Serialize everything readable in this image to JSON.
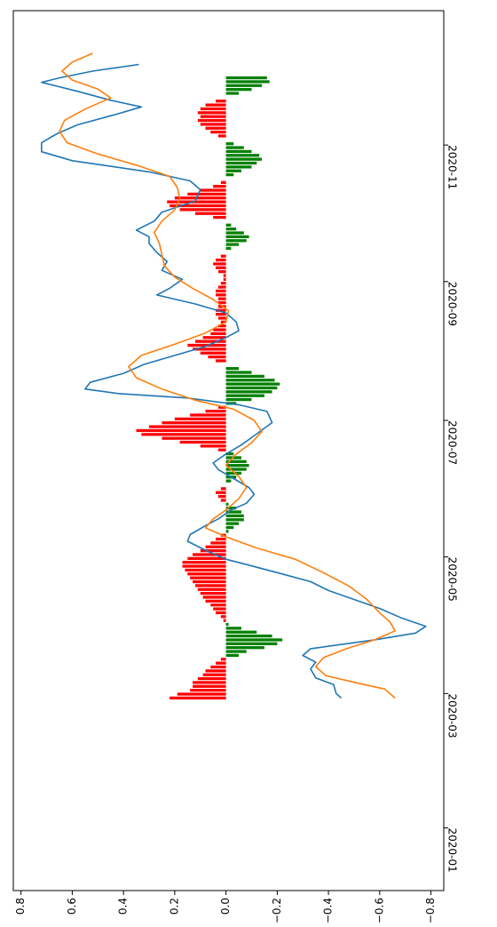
{
  "chart_data": {
    "type": "bar+line",
    "orientation": "rotated-90-clockwise",
    "x_type": "date",
    "x_ticks": [
      "2020-01",
      "2020-03",
      "2020-05",
      "2020-07",
      "2020-09",
      "2020-11"
    ],
    "y_ticks": [
      0.8,
      0.6,
      0.4,
      0.2,
      0.0,
      -0.2,
      -0.4,
      -0.6,
      -0.8
    ],
    "ylim": [
      -0.85,
      0.83
    ],
    "xlim": [
      "2019-12-04",
      "2020-12-31"
    ],
    "grid": false,
    "colors": {
      "line_blue": "#1f77b4",
      "line_orange": "#ff7f0e",
      "bar_positive": "#ff0000",
      "bar_negative": "#008000"
    },
    "bars": {
      "start": "2020-02-28",
      "end": "2020-12-01",
      "values": [
        0.22,
        0.19,
        0.14,
        0.13,
        0.13,
        0.11,
        0.09,
        0.08,
        0.06,
        0.04,
        0.02,
        -0.05,
        -0.08,
        -0.15,
        -0.2,
        -0.22,
        -0.18,
        -0.12,
        -0.06,
        -0.01,
        0.01,
        0.02,
        0.04,
        0.05,
        0.06,
        0.08,
        0.09,
        0.1,
        0.11,
        0.12,
        0.13,
        0.14,
        0.15,
        0.16,
        0.17,
        0.17,
        0.15,
        0.13,
        0.1,
        0.08,
        0.06,
        0.04,
        0.02,
        -0.01,
        -0.03,
        -0.05,
        -0.07,
        -0.07,
        -0.06,
        -0.04,
        -0.01,
        0.02,
        0.03,
        0.04,
        0.02,
        0.0,
        -0.02,
        -0.04,
        -0.06,
        -0.08,
        -0.09,
        -0.08,
        -0.06,
        -0.03,
        0.03,
        0.1,
        0.18,
        0.25,
        0.33,
        0.35,
        0.3,
        0.25,
        0.2,
        0.14,
        0.08,
        0.03,
        -0.04,
        -0.1,
        -0.15,
        -0.18,
        -0.2,
        -0.21,
        -0.19,
        -0.15,
        -0.1,
        -0.05,
        0.0,
        0.04,
        0.07,
        0.1,
        0.13,
        0.15,
        0.12,
        0.09,
        0.06,
        0.05,
        0.03,
        0.02,
        0.03,
        0.04,
        0.04,
        0.03,
        0.03,
        0.03,
        0.04,
        0.04,
        0.03,
        0.02,
        0.01,
        0.01,
        0.03,
        0.04,
        0.05,
        0.04,
        0.02,
        0.0,
        -0.02,
        -0.05,
        -0.08,
        -0.09,
        -0.07,
        -0.04,
        -0.02,
        0.0,
        0.05,
        0.12,
        0.18,
        0.22,
        0.23,
        0.2,
        0.15,
        0.1,
        0.05,
        0.02,
        0.0,
        -0.03,
        -0.06,
        -0.1,
        -0.12,
        -0.14,
        -0.13,
        -0.1,
        -0.07,
        -0.03,
        0.0,
        0.03,
        0.06,
        0.08,
        0.1,
        0.11,
        0.1,
        0.11,
        0.1,
        0.08,
        0.04,
        0.0,
        -0.05,
        -0.1,
        -0.14,
        -0.17,
        -0.16
      ]
    },
    "series": [
      {
        "color": "#1f77b4",
        "points": [
          [
            "2020-02-28",
            -0.45
          ],
          [
            "2020-03-01",
            -0.43
          ],
          [
            "2020-03-05",
            -0.42
          ],
          [
            "2020-03-08",
            -0.35
          ],
          [
            "2020-03-12",
            -0.33
          ],
          [
            "2020-03-15",
            -0.35
          ],
          [
            "2020-03-18",
            -0.3
          ],
          [
            "2020-03-21",
            -0.33
          ],
          [
            "2020-03-25",
            -0.58
          ],
          [
            "2020-03-28",
            -0.74
          ],
          [
            "2020-03-31",
            -0.78
          ],
          [
            "2020-04-04",
            -0.68
          ],
          [
            "2020-04-08",
            -0.6
          ],
          [
            "2020-04-12",
            -0.5
          ],
          [
            "2020-04-16",
            -0.4
          ],
          [
            "2020-04-20",
            -0.33
          ],
          [
            "2020-04-24",
            -0.2
          ],
          [
            "2020-04-27",
            -0.1
          ],
          [
            "2020-04-30",
            0.0
          ],
          [
            "2020-05-04",
            0.08
          ],
          [
            "2020-05-08",
            0.15
          ],
          [
            "2020-05-11",
            0.14
          ],
          [
            "2020-05-15",
            0.08
          ],
          [
            "2020-05-18",
            0.03
          ],
          [
            "2020-05-22",
            -0.02
          ],
          [
            "2020-05-25",
            -0.08
          ],
          [
            "2020-05-29",
            -0.11
          ],
          [
            "2020-06-01",
            -0.09
          ],
          [
            "2020-06-05",
            -0.03
          ],
          [
            "2020-06-09",
            0.03
          ],
          [
            "2020-06-12",
            0.05
          ],
          [
            "2020-06-16",
            0.0
          ],
          [
            "2020-06-20",
            -0.06
          ],
          [
            "2020-06-25",
            -0.12
          ],
          [
            "2020-06-30",
            -0.18
          ],
          [
            "2020-07-05",
            -0.16
          ],
          [
            "2020-07-08",
            -0.05
          ],
          [
            "2020-07-11",
            0.15
          ],
          [
            "2020-07-13",
            0.42
          ],
          [
            "2020-07-15",
            0.55
          ],
          [
            "2020-07-18",
            0.53
          ],
          [
            "2020-07-22",
            0.4
          ],
          [
            "2020-07-26",
            0.32
          ],
          [
            "2020-07-30",
            0.2
          ],
          [
            "2020-08-03",
            0.08
          ],
          [
            "2020-08-07",
            0.0
          ],
          [
            "2020-08-10",
            -0.05
          ],
          [
            "2020-08-14",
            -0.04
          ],
          [
            "2020-08-18",
            0.0
          ],
          [
            "2020-08-22",
            0.12
          ],
          [
            "2020-08-26",
            0.27
          ],
          [
            "2020-08-29",
            0.22
          ],
          [
            "2020-09-02",
            0.17
          ],
          [
            "2020-09-06",
            0.25
          ],
          [
            "2020-09-10",
            0.23
          ],
          [
            "2020-09-14",
            0.27
          ],
          [
            "2020-09-18",
            0.3
          ],
          [
            "2020-09-21",
            0.3
          ],
          [
            "2020-09-24",
            0.35
          ],
          [
            "2020-09-28",
            0.28
          ],
          [
            "2020-10-02",
            0.25
          ],
          [
            "2020-10-07",
            0.12
          ],
          [
            "2020-10-12",
            0.1
          ],
          [
            "2020-10-16",
            0.14
          ],
          [
            "2020-10-20",
            0.3
          ],
          [
            "2020-10-25",
            0.6
          ],
          [
            "2020-10-29",
            0.72
          ],
          [
            "2020-11-02",
            0.72
          ],
          [
            "2020-11-06",
            0.66
          ],
          [
            "2020-11-10",
            0.58
          ],
          [
            "2020-11-15",
            0.42
          ],
          [
            "2020-11-18",
            0.33
          ],
          [
            "2020-11-21",
            0.45
          ],
          [
            "2020-11-25",
            0.58
          ],
          [
            "2020-11-29",
            0.72
          ],
          [
            "2020-12-01",
            0.65
          ],
          [
            "2020-12-04",
            0.52
          ],
          [
            "2020-12-07",
            0.34
          ]
        ]
      },
      {
        "color": "#ff7f0e",
        "points": [
          [
            "2020-02-28",
            -0.66
          ],
          [
            "2020-03-03",
            -0.62
          ],
          [
            "2020-03-06",
            -0.5
          ],
          [
            "2020-03-09",
            -0.39
          ],
          [
            "2020-03-13",
            -0.35
          ],
          [
            "2020-03-17",
            -0.38
          ],
          [
            "2020-03-21",
            -0.47
          ],
          [
            "2020-03-25",
            -0.58
          ],
          [
            "2020-03-29",
            -0.66
          ],
          [
            "2020-04-02",
            -0.64
          ],
          [
            "2020-04-06",
            -0.6
          ],
          [
            "2020-04-12",
            -0.55
          ],
          [
            "2020-04-18",
            -0.48
          ],
          [
            "2020-04-24",
            -0.38
          ],
          [
            "2020-04-30",
            -0.27
          ],
          [
            "2020-05-05",
            -0.12
          ],
          [
            "2020-05-10",
            0.0
          ],
          [
            "2020-05-14",
            0.08
          ],
          [
            "2020-05-18",
            0.05
          ],
          [
            "2020-05-22",
            0.0
          ],
          [
            "2020-05-27",
            -0.05
          ],
          [
            "2020-06-01",
            -0.08
          ],
          [
            "2020-06-06",
            -0.05
          ],
          [
            "2020-06-11",
            0.0
          ],
          [
            "2020-06-16",
            -0.04
          ],
          [
            "2020-06-21",
            -0.1
          ],
          [
            "2020-06-26",
            -0.14
          ],
          [
            "2020-07-01",
            -0.11
          ],
          [
            "2020-07-06",
            -0.03
          ],
          [
            "2020-07-10",
            0.12
          ],
          [
            "2020-07-15",
            0.25
          ],
          [
            "2020-07-20",
            0.35
          ],
          [
            "2020-07-25",
            0.38
          ],
          [
            "2020-07-30",
            0.33
          ],
          [
            "2020-08-04",
            0.2
          ],
          [
            "2020-08-09",
            0.08
          ],
          [
            "2020-08-14",
            0.0
          ],
          [
            "2020-08-19",
            -0.01
          ],
          [
            "2020-08-24",
            0.05
          ],
          [
            "2020-08-29",
            0.13
          ],
          [
            "2020-09-03",
            0.2
          ],
          [
            "2020-09-08",
            0.24
          ],
          [
            "2020-09-13",
            0.25
          ],
          [
            "2020-09-18",
            0.26
          ],
          [
            "2020-09-23",
            0.28
          ],
          [
            "2020-09-28",
            0.25
          ],
          [
            "2020-10-03",
            0.2
          ],
          [
            "2020-10-08",
            0.18
          ],
          [
            "2020-10-13",
            0.19
          ],
          [
            "2020-10-18",
            0.22
          ],
          [
            "2020-10-23",
            0.35
          ],
          [
            "2020-10-28",
            0.5
          ],
          [
            "2020-11-02",
            0.62
          ],
          [
            "2020-11-07",
            0.65
          ],
          [
            "2020-11-12",
            0.63
          ],
          [
            "2020-11-17",
            0.55
          ],
          [
            "2020-11-22",
            0.45
          ],
          [
            "2020-11-26",
            0.5
          ],
          [
            "2020-11-30",
            0.6
          ],
          [
            "2020-12-04",
            0.64
          ],
          [
            "2020-12-08",
            0.6
          ],
          [
            "2020-12-12",
            0.52
          ]
        ]
      }
    ]
  }
}
